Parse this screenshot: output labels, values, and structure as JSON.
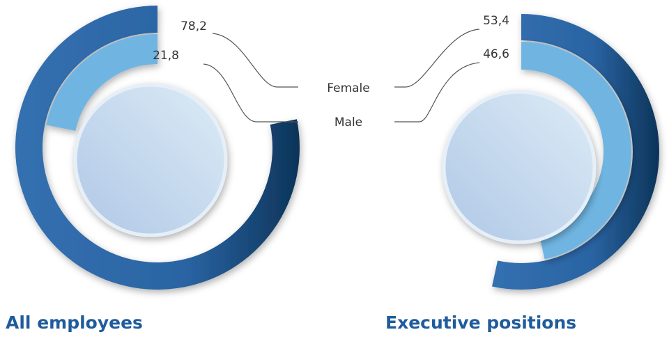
{
  "chart_data": [
    {
      "type": "radial_bar",
      "title": "All employees",
      "categories": [
        "Female",
        "Male"
      ],
      "values": [
        78.2,
        21.8
      ],
      "value_labels": [
        "78,2",
        "21,8"
      ],
      "colors": [
        "#2a64a3",
        "#6fb5e2"
      ],
      "direction": "counterclockwise",
      "max": 100
    },
    {
      "type": "radial_bar",
      "title": "Executive positions",
      "categories": [
        "Female",
        "Male"
      ],
      "values": [
        53.4,
        46.6
      ],
      "value_labels": [
        "53,4",
        "46,6"
      ],
      "colors": [
        "#2a64a3",
        "#6fb5e2"
      ],
      "direction": "clockwise",
      "max": 100
    }
  ]
}
